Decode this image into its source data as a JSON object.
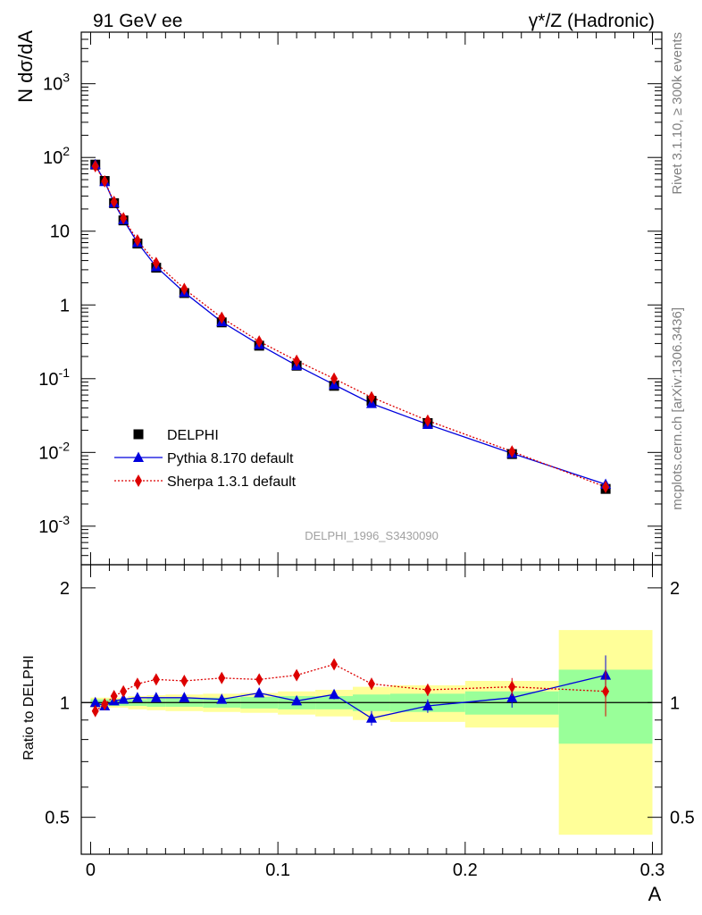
{
  "chart_data": {
    "type": "line",
    "title_left": "91 GeV ee",
    "title_right": "γ*/Z (Hadronic)",
    "ylabel": "N dσ/dA",
    "xlabel": "A",
    "ratio_ylabel": "Ratio to DELPHI",
    "watermark": "DELPHI_1996_S3430090",
    "side_text_top": "Rivet 3.1.10, ≥ 300k events",
    "side_text_bottom": "mcplots.cern.ch [arXiv:1306.3436]",
    "log_y": true,
    "xlim": [
      -0.005,
      0.305
    ],
    "ylim": [
      0.0003,
      5000
    ],
    "ratio_ylim": [
      0.4,
      2.3
    ],
    "x_ticks": [
      "0",
      "0.1",
      "0.2",
      "0.3"
    ],
    "y_ticks": [
      "10^-3",
      "10^-2",
      "10^-1",
      "1",
      "10",
      "10^2",
      "10^3"
    ],
    "ratio_ticks_left": [
      "0.5",
      "1",
      "2"
    ],
    "ratio_ticks_right": [
      "0.5",
      "1",
      "2"
    ],
    "x": [
      0.0025,
      0.0075,
      0.0125,
      0.0175,
      0.025,
      0.035,
      0.05,
      0.07,
      0.09,
      0.11,
      0.13,
      0.15,
      0.18,
      0.225,
      0.275
    ],
    "series": [
      {
        "name": "DELPHI",
        "color": "#000000",
        "marker": "square",
        "values": [
          80,
          48,
          24,
          14,
          6.8,
          3.2,
          1.45,
          0.58,
          0.28,
          0.15,
          0.08,
          0.05,
          0.025,
          0.0095,
          0.0032
        ]
      },
      {
        "name": "Pythia 8.170 default",
        "color": "#0000dd",
        "marker": "triangle",
        "line": "solid",
        "values": [
          80,
          47,
          24.3,
          14.3,
          7.0,
          3.3,
          1.48,
          0.59,
          0.29,
          0.151,
          0.083,
          0.046,
          0.024,
          0.0097,
          0.0037
        ],
        "ratio": [
          1.0,
          0.98,
          1.01,
          1.02,
          1.03,
          1.03,
          1.03,
          1.02,
          1.06,
          1.01,
          1.05,
          0.91,
          0.98,
          1.03,
          1.18
        ]
      },
      {
        "name": "Sherpa 1.3.1 default",
        "color": "#dd0000",
        "marker": "diamond",
        "line": "dotted",
        "values": [
          76,
          47.5,
          25,
          15,
          7.5,
          3.7,
          1.65,
          0.67,
          0.32,
          0.175,
          0.1,
          0.056,
          0.027,
          0.0103,
          0.0034
        ],
        "ratio": [
          0.95,
          0.99,
          1.04,
          1.07,
          1.12,
          1.15,
          1.14,
          1.16,
          1.15,
          1.18,
          1.26,
          1.12,
          1.08,
          1.1,
          1.07
        ]
      }
    ],
    "ratio_error_bands": [
      {
        "x0": 0.0,
        "x1": 0.005,
        "inner": 0.02,
        "outer": 0.03
      },
      {
        "x0": 0.005,
        "x1": 0.01,
        "inner": 0.02,
        "outer": 0.03
      },
      {
        "x0": 0.01,
        "x1": 0.015,
        "inner": 0.02,
        "outer": 0.03
      },
      {
        "x0": 0.015,
        "x1": 0.02,
        "inner": 0.02,
        "outer": 0.03
      },
      {
        "x0": 0.02,
        "x1": 0.03,
        "inner": 0.02,
        "outer": 0.04
      },
      {
        "x0": 0.03,
        "x1": 0.04,
        "inner": 0.025,
        "outer": 0.045
      },
      {
        "x0": 0.04,
        "x1": 0.06,
        "inner": 0.025,
        "outer": 0.05
      },
      {
        "x0": 0.06,
        "x1": 0.08,
        "inner": 0.03,
        "outer": 0.055
      },
      {
        "x0": 0.08,
        "x1": 0.1,
        "inner": 0.035,
        "outer": 0.06
      },
      {
        "x0": 0.1,
        "x1": 0.12,
        "inner": 0.04,
        "outer": 0.07
      },
      {
        "x0": 0.12,
        "x1": 0.14,
        "inner": 0.04,
        "outer": 0.08
      },
      {
        "x0": 0.14,
        "x1": 0.16,
        "inner": 0.05,
        "outer": 0.1
      },
      {
        "x0": 0.16,
        "x1": 0.2,
        "inner": 0.055,
        "outer": 0.11
      },
      {
        "x0": 0.2,
        "x1": 0.25,
        "inner": 0.07,
        "outer": 0.14
      },
      {
        "x0": 0.25,
        "x1": 0.3,
        "inner": 0.22,
        "outer": 0.55
      }
    ],
    "ratio_errors_mc": [
      0.01,
      0.01,
      0.01,
      0.01,
      0.01,
      0.01,
      0.01,
      0.01,
      0.015,
      0.02,
      0.03,
      0.04,
      0.04,
      0.06,
      0.15
    ]
  }
}
